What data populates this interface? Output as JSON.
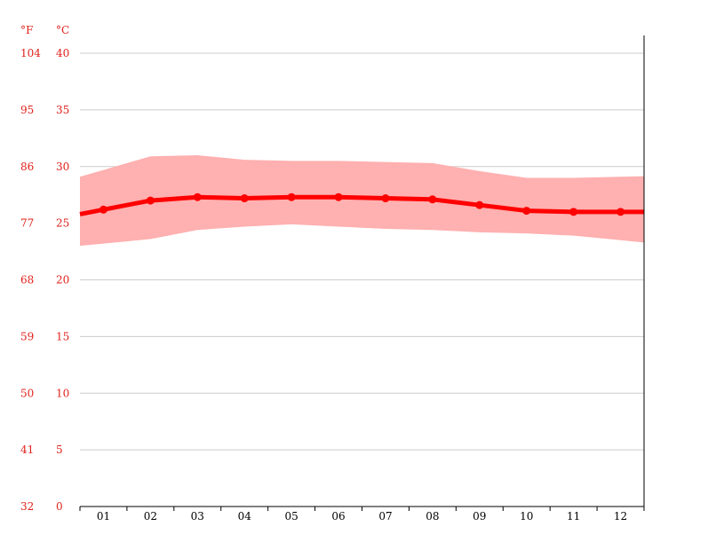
{
  "chart_data": {
    "type": "line",
    "units": {
      "fahrenheit": "°F",
      "celsius": "°C"
    },
    "x": [
      "01",
      "02",
      "03",
      "04",
      "05",
      "06",
      "07",
      "08",
      "09",
      "10",
      "11",
      "12"
    ],
    "ylim": [
      0,
      40
    ],
    "y_ticks_c": [
      "40",
      "35",
      "30",
      "25",
      "20",
      "15",
      "10",
      "5",
      "0"
    ],
    "y_ticks_f": [
      "104",
      "95",
      "86",
      "77",
      "68",
      "59",
      "50",
      "41",
      "32"
    ],
    "grid": true,
    "series": [
      {
        "role": "mean",
        "values": [
          26.2,
          27.0,
          27.3,
          27.2,
          27.3,
          27.3,
          27.2,
          27.1,
          26.6,
          26.1,
          26.0,
          26.0
        ]
      },
      {
        "role": "max",
        "values": [
          29.7,
          30.9,
          31.0,
          30.6,
          30.5,
          30.5,
          30.4,
          30.3,
          29.6,
          29.0,
          29.0,
          29.1
        ]
      },
      {
        "role": "min",
        "values": [
          23.2,
          23.6,
          24.4,
          24.7,
          24.9,
          24.7,
          24.5,
          24.4,
          24.2,
          24.1,
          23.9,
          23.5
        ]
      }
    ],
    "colors": {
      "mean": "#ff0000",
      "range": "#ffb0b0",
      "tick_text": "#e0201b",
      "grid": "#cccccc"
    }
  }
}
